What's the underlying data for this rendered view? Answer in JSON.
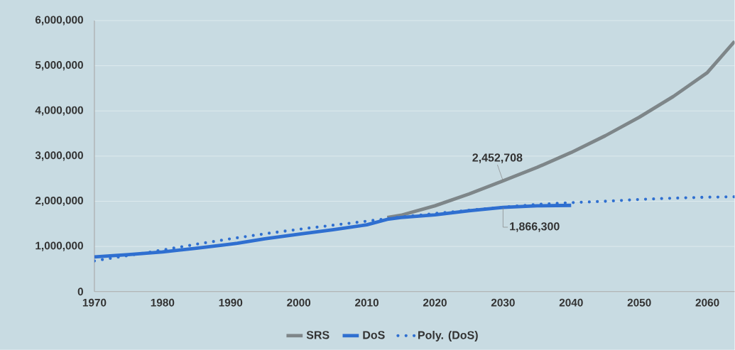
{
  "chart_data": {
    "type": "line",
    "x": [
      1970,
      1975,
      1980,
      1985,
      1990,
      1991,
      1995,
      2000,
      2005,
      2010,
      2013,
      2015,
      2020,
      2025,
      2030,
      2035,
      2040
    ],
    "series": [
      {
        "name": "SRS",
        "color": "#7e8689",
        "x": [
          2013,
          2015,
          2020,
          2025,
          2030,
          2035,
          2040,
          2045,
          2050,
          2055,
          2060,
          2064
        ],
        "values": [
          1640000,
          1690000,
          1900000,
          2160000,
          2452708,
          2750000,
          3080000,
          3450000,
          3860000,
          4320000,
          4850000,
          5540000
        ]
      },
      {
        "name": "DoS",
        "color": "#2f6fd0",
        "values": [
          770000,
          820000,
          880000,
          960000,
          1050000,
          1070000,
          1170000,
          1270000,
          1370000,
          1480000,
          1600000,
          1640000,
          1700000,
          1790000,
          1866300,
          1900000,
          1910000
        ]
      },
      {
        "name": "Poly. (DoS)",
        "color": "#2f6fd0",
        "line_style": "dotted",
        "x": [
          1970,
          1975,
          1980,
          1985,
          1990,
          1995,
          2000,
          2005,
          2010,
          2015,
          2020,
          2025,
          2030,
          2035,
          2040,
          2045,
          2050,
          2055,
          2060,
          2064
        ],
        "values": [
          680000,
          800000,
          920000,
          1050000,
          1170000,
          1280000,
          1380000,
          1470000,
          1560000,
          1650000,
          1730000,
          1800000,
          1870000,
          1930000,
          1970000,
          2000000,
          2040000,
          2070000,
          2090000,
          2100000
        ]
      }
    ],
    "xlim": [
      1970,
      2064
    ],
    "ylim": [
      0,
      6000000
    ],
    "xticks": [
      1970,
      1980,
      1990,
      2000,
      2010,
      2020,
      2030,
      2040,
      2050,
      2060
    ],
    "yticks": [
      0,
      {
        "value": 1000000,
        "label": "1,000,000"
      },
      {
        "value": 2000000,
        "label": "2,000,000"
      },
      {
        "value": 3000000,
        "label": "3,000,000"
      },
      {
        "value": 4000000,
        "label": "4,000,000"
      },
      {
        "value": 5000000,
        "label": "5,000,000"
      },
      {
        "value": 6000000,
        "label": "6,000,000"
      }
    ],
    "grid": "y",
    "legend": "bottom",
    "marker": "none",
    "line_style": "solid",
    "annotations": [
      {
        "text": "2,452,708",
        "x": 2030,
        "y": 2452708
      },
      {
        "text": "1,866,300",
        "x": 2030,
        "y": 1866300
      }
    ]
  }
}
